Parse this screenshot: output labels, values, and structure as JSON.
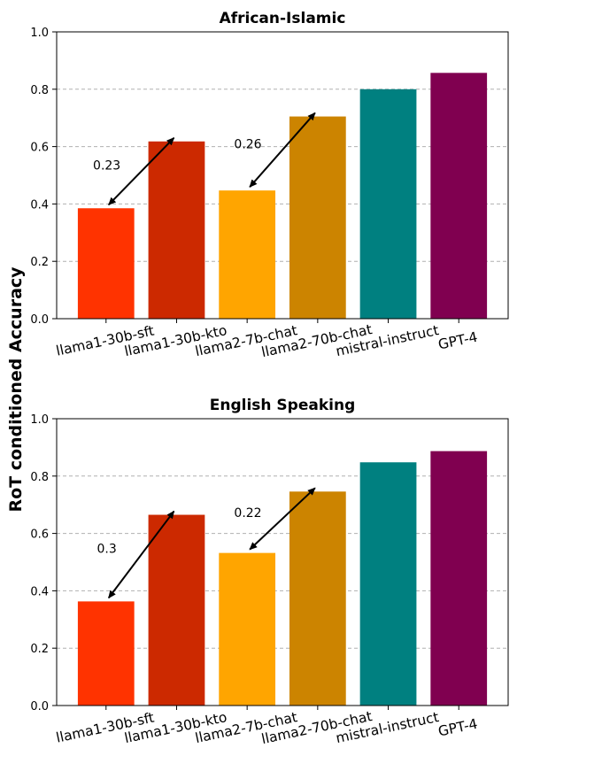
{
  "figure": {
    "ylabel": "RoT conditioned Accuracy"
  },
  "chart_data": [
    {
      "type": "bar",
      "title": "African-Islamic",
      "categories": [
        "llama1-30b-sft",
        "llama1-30b-kto",
        "llama2-7b-chat",
        "llama2-70b-chat",
        "mistral-instruct",
        "GPT-4"
      ],
      "values": [
        0.385,
        0.618,
        0.447,
        0.705,
        0.8,
        0.857
      ],
      "colors": [
        "#ff3300",
        "#cc2900",
        "#ffa500",
        "#cc8400",
        "#008080",
        "#800050"
      ],
      "ylim": [
        0,
        1.0
      ],
      "yticks": [
        "0.0",
        "0.2",
        "0.4",
        "0.6",
        "0.8",
        "1.0"
      ],
      "grid": "y-dashed",
      "annotations": [
        {
          "from": 0,
          "to": 1,
          "label": "0.23"
        },
        {
          "from": 2,
          "to": 3,
          "label": "0.26"
        }
      ]
    },
    {
      "type": "bar",
      "title": "English Speaking",
      "categories": [
        "llama1-30b-sft",
        "llama1-30b-kto",
        "llama2-7b-chat",
        "llama2-70b-chat",
        "mistral-instruct",
        "GPT-4"
      ],
      "values": [
        0.363,
        0.665,
        0.532,
        0.746,
        0.848,
        0.887
      ],
      "colors": [
        "#ff3300",
        "#cc2900",
        "#ffa500",
        "#cc8400",
        "#008080",
        "#800050"
      ],
      "ylim": [
        0,
        1.0
      ],
      "yticks": [
        "0.0",
        "0.2",
        "0.4",
        "0.6",
        "0.8",
        "1.0"
      ],
      "grid": "y-dashed",
      "annotations": [
        {
          "from": 0,
          "to": 1,
          "label": "0.3"
        },
        {
          "from": 2,
          "to": 3,
          "label": "0.22"
        }
      ]
    }
  ]
}
